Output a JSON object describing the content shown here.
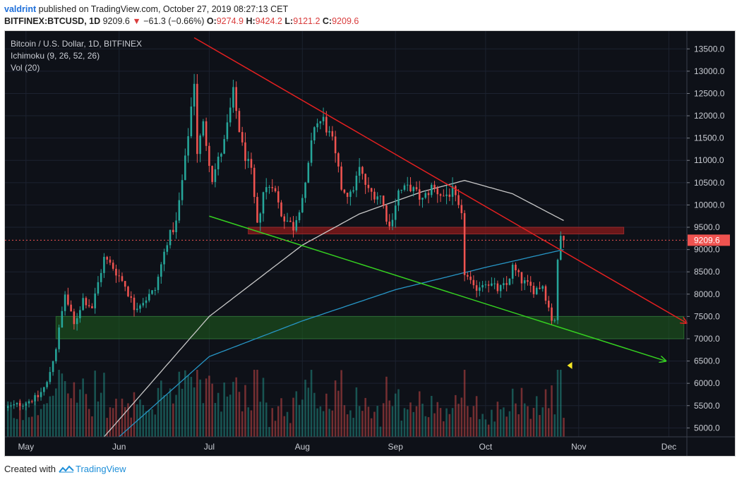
{
  "header": {
    "author": "valdrint",
    "published_text": "published on TradingView.com, October 27, 2019 08:27:13 CET",
    "symbol": "BITFINEX:BTCUSD, 1D",
    "last": "9209.6",
    "change_arrow": "▼",
    "change": "−61.3 (−0.66%)",
    "o_label": "O:",
    "o": "9274.9",
    "h_label": "H:",
    "h": "9424.2",
    "l_label": "L:",
    "l": "9121.2",
    "c_label": "C:",
    "c": "9209.6"
  },
  "legend": {
    "line1": "Bitcoin / U.S. Dollar, 1D, BITFINEX",
    "line2": "Ichimoku (9, 26, 52, 26)",
    "line3": "Vol (20)"
  },
  "footer": {
    "created_with": "Created with",
    "brand": "TradingView"
  },
  "colors": {
    "background": "#0e1118",
    "up": "#26a69a",
    "down": "#ef5350",
    "resistance_line": "#e52020",
    "support_line": "#35d020",
    "cloud_white": "#c8c8c8",
    "cloud_blue": "#2796c6",
    "red_zone": "#8b1a1a",
    "green_zone": "#1d5a1d",
    "price_label_bg": "#ef5350",
    "marker": "#f5e625"
  },
  "chart_data": {
    "type": "candlestick",
    "title": "Bitcoin / U.S. Dollar, 1D, BITFINEX",
    "y_ticks": [
      5000.0,
      5500.0,
      6000.0,
      6500.0,
      7000.0,
      7500.0,
      8000.0,
      8500.0,
      9000.0,
      9500.0,
      10000.0,
      10500.0,
      11000.0,
      11500.0,
      12000.0,
      12500.0,
      13000.0,
      13500.0
    ],
    "ylim": [
      4800,
      13900
    ],
    "x_ticks": [
      {
        "label": "May",
        "date": "2019-05-01"
      },
      {
        "label": "Jun",
        "date": "2019-06-01"
      },
      {
        "label": "Jul",
        "date": "2019-07-01"
      },
      {
        "label": "Aug",
        "date": "2019-08-01"
      },
      {
        "label": "Sep",
        "date": "2019-09-01"
      },
      {
        "label": "Oct",
        "date": "2019-10-01"
      },
      {
        "label": "Nov",
        "date": "2019-11-01"
      },
      {
        "label": "Dec",
        "date": "2019-12-01"
      }
    ],
    "xlim": [
      "2019-04-24",
      "2019-12-07"
    ],
    "current_price": 9209.6,
    "current_price_label": "9209.6",
    "price_anchors": [
      {
        "date": "2019-04-24",
        "price": 5450
      },
      {
        "date": "2019-04-30",
        "price": 5550
      },
      {
        "date": "2019-05-05",
        "price": 5700
      },
      {
        "date": "2019-05-08",
        "price": 6000
      },
      {
        "date": "2019-05-11",
        "price": 6800
      },
      {
        "date": "2019-05-13",
        "price": 7600
      },
      {
        "date": "2019-05-14",
        "price": 8000
      },
      {
        "date": "2019-05-17",
        "price": 7300
      },
      {
        "date": "2019-05-20",
        "price": 7900
      },
      {
        "date": "2019-05-23",
        "price": 7700
      },
      {
        "date": "2019-05-27",
        "price": 8800
      },
      {
        "date": "2019-05-30",
        "price": 8600
      },
      {
        "date": "2019-06-03",
        "price": 8200
      },
      {
        "date": "2019-06-06",
        "price": 7700
      },
      {
        "date": "2019-06-10",
        "price": 7900
      },
      {
        "date": "2019-06-13",
        "price": 8100
      },
      {
        "date": "2019-06-17",
        "price": 9200
      },
      {
        "date": "2019-06-20",
        "price": 9600
      },
      {
        "date": "2019-06-23",
        "price": 11000
      },
      {
        "date": "2019-06-26",
        "price": 12800
      },
      {
        "date": "2019-06-27",
        "price": 11200
      },
      {
        "date": "2019-06-29",
        "price": 11800
      },
      {
        "date": "2019-07-02",
        "price": 10600
      },
      {
        "date": "2019-07-06",
        "price": 11400
      },
      {
        "date": "2019-07-09",
        "price": 12500
      },
      {
        "date": "2019-07-12",
        "price": 11300
      },
      {
        "date": "2019-07-15",
        "price": 10700
      },
      {
        "date": "2019-07-17",
        "price": 9500
      },
      {
        "date": "2019-07-19",
        "price": 10300
      },
      {
        "date": "2019-07-22",
        "price": 10500
      },
      {
        "date": "2019-07-25",
        "price": 9800
      },
      {
        "date": "2019-07-29",
        "price": 9500
      },
      {
        "date": "2019-08-02",
        "price": 10400
      },
      {
        "date": "2019-08-05",
        "price": 11800
      },
      {
        "date": "2019-08-08",
        "price": 11900
      },
      {
        "date": "2019-08-11",
        "price": 11400
      },
      {
        "date": "2019-08-14",
        "price": 10400
      },
      {
        "date": "2019-08-17",
        "price": 10200
      },
      {
        "date": "2019-08-20",
        "price": 10800
      },
      {
        "date": "2019-08-23",
        "price": 10300
      },
      {
        "date": "2019-08-27",
        "price": 10200
      },
      {
        "date": "2019-08-30",
        "price": 9500
      },
      {
        "date": "2019-09-02",
        "price": 10300
      },
      {
        "date": "2019-09-06",
        "price": 10400
      },
      {
        "date": "2019-09-10",
        "price": 10100
      },
      {
        "date": "2019-09-13",
        "price": 10400
      },
      {
        "date": "2019-09-17",
        "price": 10200
      },
      {
        "date": "2019-09-20",
        "price": 10300
      },
      {
        "date": "2019-09-23",
        "price": 9700
      },
      {
        "date": "2019-09-24",
        "price": 8500
      },
      {
        "date": "2019-09-27",
        "price": 8100
      },
      {
        "date": "2019-10-01",
        "price": 8300
      },
      {
        "date": "2019-10-05",
        "price": 8100
      },
      {
        "date": "2019-10-08",
        "price": 8200
      },
      {
        "date": "2019-10-10",
        "price": 8600
      },
      {
        "date": "2019-10-13",
        "price": 8300
      },
      {
        "date": "2019-10-17",
        "price": 8100
      },
      {
        "date": "2019-10-20",
        "price": 8200
      },
      {
        "date": "2019-10-23",
        "price": 7450
      },
      {
        "date": "2019-10-24",
        "price": 7450
      },
      {
        "date": "2019-10-25",
        "price": 8700
      },
      {
        "date": "2019-10-26",
        "price": 9300
      },
      {
        "date": "2019-10-27",
        "price": 9209.6
      }
    ],
    "baseline_anchors": [
      {
        "date": "2019-06-01",
        "price": 4800
      },
      {
        "date": "2019-07-01",
        "price": 6600
      },
      {
        "date": "2019-08-01",
        "price": 7400
      },
      {
        "date": "2019-09-01",
        "price": 8100
      },
      {
        "date": "2019-10-01",
        "price": 8600
      },
      {
        "date": "2019-10-27",
        "price": 9000
      }
    ],
    "conversion_anchors": [
      {
        "date": "2019-05-27",
        "price": 4800
      },
      {
        "date": "2019-07-01",
        "price": 7500
      },
      {
        "date": "2019-08-01",
        "price": 9100
      },
      {
        "date": "2019-08-20",
        "price": 9800
      },
      {
        "date": "2019-09-10",
        "price": 10300
      },
      {
        "date": "2019-09-24",
        "price": 10550
      },
      {
        "date": "2019-10-10",
        "price": 10250
      },
      {
        "date": "2019-10-27",
        "price": 9650
      }
    ],
    "annotations": {
      "resistance_line": {
        "from": {
          "date": "2019-06-26",
          "price": 13750
        },
        "to": {
          "date": "2019-12-07",
          "price": 7350
        }
      },
      "support_line": {
        "from": {
          "date": "2019-07-01",
          "price": 9750
        },
        "to": {
          "date": "2019-11-30",
          "price": 6500
        }
      },
      "red_zone": {
        "from_date": "2019-07-14",
        "to_date": "2019-11-16",
        "low": 9350,
        "high": 9500
      },
      "green_zone": {
        "from_date": "2019-05-11",
        "to_date": "2019-12-06",
        "low": 7000,
        "high": 7500
      }
    }
  }
}
